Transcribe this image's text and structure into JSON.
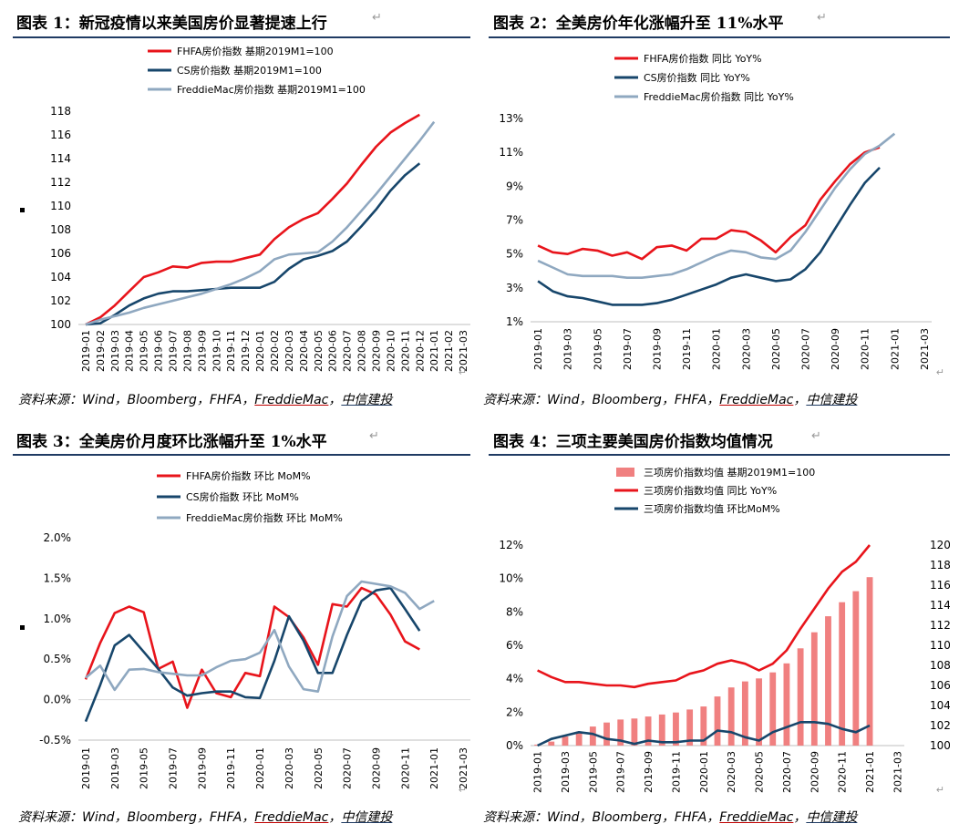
{
  "panels": [
    {
      "title": "图表 1：新冠疫情以来美国房价显著提速上行",
      "source": {
        "prefix": "资料来源：Wind，Bloomberg，FHFA，",
        "underlined": "FreddieMac",
        "sep": "，",
        "brand": "中信建投"
      }
    },
    {
      "title": "图表 2：全美房价年化涨幅升至 11%水平",
      "source": {
        "prefix": "资料来源：Wind，Bloomberg，FHFA，",
        "underlined": "FreddieMac",
        "sep": "，",
        "brand": "中信建投"
      }
    },
    {
      "title": "图表 3：全美房价月度环比涨幅升至 1%水平",
      "source": {
        "prefix": "资料来源：Wind，Bloomberg，FHFA，",
        "underlined": "FreddieMac",
        "sep": "，",
        "brand": "中信建投"
      }
    },
    {
      "title": "图表 4：三项主要美国房价指数均值情况",
      "source": {
        "prefix": "资料来源：Wind，Bloomberg，FHFA，",
        "underlined": "FreddieMac",
        "sep": "，",
        "brand": "中信建投"
      }
    }
  ],
  "colors": {
    "red": "#e8141b",
    "navy": "#17466b",
    "grey": "#8fa8c0",
    "bar": "#f08080",
    "rule": "#1f3b63"
  },
  "chart_data": [
    {
      "type": "line",
      "x": [
        "2019-01",
        "2019-02",
        "2019-03",
        "2019-04",
        "2019-05",
        "2019-06",
        "2019-07",
        "2019-08",
        "2019-09",
        "2019-10",
        "2019-11",
        "2019-12",
        "2020-01",
        "2020-02",
        "2020-03",
        "2020-04",
        "2020-05",
        "2020-06",
        "2020-07",
        "2020-08",
        "2020-09",
        "2020-10",
        "2020-11",
        "2020-12",
        "2021-01",
        "2021-02",
        "2021-03"
      ],
      "tick_labels": [
        "2019-01",
        "2019-02",
        "2019-03",
        "2019-04",
        "2019-05",
        "2019-06",
        "2019-07",
        "2019-08",
        "2019-09",
        "2019-10",
        "2019-11",
        "2019-12",
        "2020-01",
        "2020-02",
        "2020-03",
        "2020-04",
        "2020-05",
        "2020-06",
        "2020-07",
        "2020-08",
        "2020-09",
        "2020-10",
        "2020-11",
        "2020-12",
        "2021-01",
        "2021-02",
        "2021-03"
      ],
      "ylim": [
        100,
        118
      ],
      "yticks": [
        100,
        102,
        104,
        106,
        108,
        110,
        112,
        114,
        116,
        118
      ],
      "series": [
        {
          "name": "FHFA房价指数 基期2019M1=100",
          "color": "#e8141b",
          "values": [
            100,
            100.6,
            101.6,
            102.8,
            104.0,
            104.4,
            104.9,
            104.8,
            105.2,
            105.3,
            105.3,
            105.6,
            105.9,
            107.2,
            108.2,
            108.9,
            109.4,
            110.6,
            111.9,
            113.5,
            115.0,
            116.2,
            117.0,
            117.7,
            null,
            null,
            null
          ]
        },
        {
          "name": "CS房价指数 基期2019M1=100",
          "color": "#17466b",
          "values": [
            100,
            100.1,
            100.8,
            101.6,
            102.2,
            102.6,
            102.8,
            102.8,
            102.9,
            103.0,
            103.1,
            103.1,
            103.1,
            103.6,
            104.7,
            105.5,
            105.8,
            106.2,
            107.0,
            108.3,
            109.7,
            111.3,
            112.6,
            113.6,
            null,
            null,
            null
          ]
        },
        {
          "name": "FreddieMac房价指数 基期2019M1=100",
          "color": "#8fa8c0",
          "values": [
            100,
            100.4,
            100.7,
            101.0,
            101.4,
            101.7,
            102.0,
            102.3,
            102.6,
            103.0,
            103.4,
            103.9,
            104.5,
            105.5,
            105.9,
            106.0,
            106.1,
            107.0,
            108.2,
            109.6,
            111.0,
            112.5,
            114.0,
            115.5,
            117.1,
            null,
            null
          ]
        }
      ]
    },
    {
      "type": "line",
      "x": [
        "2019-01",
        "2019-02",
        "2019-03",
        "2019-04",
        "2019-05",
        "2019-06",
        "2019-07",
        "2019-08",
        "2019-09",
        "2019-10",
        "2019-11",
        "2019-12",
        "2020-01",
        "2020-02",
        "2020-03",
        "2020-04",
        "2020-05",
        "2020-06",
        "2020-07",
        "2020-08",
        "2020-09",
        "2020-10",
        "2020-11",
        "2020-12",
        "2021-01",
        "2021-02",
        "2021-03"
      ],
      "tick_labels": [
        "2019-01",
        "2019-03",
        "2019-05",
        "2019-07",
        "2019-09",
        "2019-11",
        "2020-01",
        "2020-03",
        "2020-05",
        "2020-07",
        "2020-09",
        "2020-11",
        "2021-01",
        "2021-03"
      ],
      "ylim": [
        1,
        13
      ],
      "yticks": [
        1,
        3,
        5,
        7,
        9,
        11,
        13
      ],
      "yunit": "%",
      "series": [
        {
          "name": "FHFA房价指数 同比 YoY%",
          "color": "#e8141b",
          "values": [
            5.5,
            5.1,
            5.0,
            5.3,
            5.2,
            4.9,
            5.1,
            4.7,
            5.4,
            5.5,
            5.2,
            5.9,
            5.9,
            6.4,
            6.3,
            5.8,
            5.1,
            6.0,
            6.7,
            8.2,
            9.3,
            10.3,
            11.0,
            11.3,
            null,
            null,
            null
          ]
        },
        {
          "name": "CS房价指数 同比 YoY%",
          "color": "#17466b",
          "values": [
            3.4,
            2.8,
            2.5,
            2.4,
            2.2,
            2.0,
            2.0,
            2.0,
            2.1,
            2.3,
            2.6,
            2.9,
            3.2,
            3.6,
            3.8,
            3.6,
            3.4,
            3.5,
            4.1,
            5.1,
            6.5,
            7.9,
            9.2,
            10.1,
            null,
            null,
            null
          ]
        },
        {
          "name": "FreddieMac房价指数 同比 YoY%",
          "color": "#8fa8c0",
          "values": [
            4.6,
            4.2,
            3.8,
            3.7,
            3.7,
            3.7,
            3.6,
            3.6,
            3.7,
            3.8,
            4.1,
            4.5,
            4.9,
            5.2,
            5.1,
            4.8,
            4.7,
            5.2,
            6.3,
            7.6,
            8.9,
            10.0,
            10.9,
            11.4,
            12.1,
            null,
            null
          ]
        }
      ]
    },
    {
      "type": "line",
      "x": [
        "2019-01",
        "2019-02",
        "2019-03",
        "2019-04",
        "2019-05",
        "2019-06",
        "2019-07",
        "2019-08",
        "2019-09",
        "2019-10",
        "2019-11",
        "2019-12",
        "2020-01",
        "2020-02",
        "2020-03",
        "2020-04",
        "2020-05",
        "2020-06",
        "2020-07",
        "2020-08",
        "2020-09",
        "2020-10",
        "2020-11",
        "2020-12",
        "2021-01",
        "2021-02",
        "2021-03"
      ],
      "tick_labels": [
        "2019-01",
        "2019-03",
        "2019-05",
        "2019-07",
        "2019-09",
        "2019-11",
        "2020-01",
        "2020-03",
        "2020-05",
        "2020-07",
        "2020-09",
        "2020-11",
        "2021-01",
        "2021-03"
      ],
      "ylim": [
        -0.5,
        2.0
      ],
      "yticks": [
        -0.5,
        0.0,
        0.5,
        1.0,
        1.5,
        2.0
      ],
      "yunit": "%",
      "series": [
        {
          "name": "FHFA房价指数 环比 MoM%",
          "color": "#e8141b",
          "values": [
            0.25,
            0.7,
            1.07,
            1.15,
            1.08,
            0.38,
            0.47,
            -0.1,
            0.37,
            0.08,
            0.03,
            0.33,
            0.29,
            1.15,
            1.02,
            0.77,
            0.43,
            1.18,
            1.15,
            1.38,
            1.3,
            1.05,
            0.72,
            0.62,
            null,
            null,
            null
          ]
        },
        {
          "name": "CS房价指数 环比 MoM%",
          "color": "#17466b",
          "values": [
            -0.27,
            0.18,
            0.67,
            0.8,
            0.59,
            0.38,
            0.15,
            0.05,
            0.08,
            0.1,
            0.1,
            0.03,
            0.02,
            0.48,
            1.03,
            0.73,
            0.33,
            0.33,
            0.8,
            1.22,
            1.35,
            1.38,
            1.12,
            0.85,
            null,
            null,
            null
          ]
        },
        {
          "name": "FreddieMac房价指数 环比 MoM%",
          "color": "#8fa8c0",
          "values": [
            0.27,
            0.42,
            0.12,
            0.37,
            0.38,
            0.34,
            0.32,
            0.3,
            0.3,
            0.4,
            0.48,
            0.5,
            0.58,
            0.86,
            0.41,
            0.13,
            0.1,
            0.78,
            1.28,
            1.46,
            1.43,
            1.4,
            1.32,
            1.12,
            1.22,
            null,
            null
          ]
        }
      ]
    },
    {
      "type": "bar",
      "x": [
        "2019-01",
        "2019-02",
        "2019-03",
        "2019-04",
        "2019-05",
        "2019-06",
        "2019-07",
        "2019-08",
        "2019-09",
        "2019-10",
        "2019-11",
        "2019-12",
        "2020-01",
        "2020-02",
        "2020-03",
        "2020-04",
        "2020-05",
        "2020-06",
        "2020-07",
        "2020-08",
        "2020-09",
        "2020-10",
        "2020-11",
        "2020-12",
        "2021-01",
        "2021-02",
        "2021-03"
      ],
      "tick_labels": [
        "2019-01",
        "2019-03",
        "2019-05",
        "2019-07",
        "2019-09",
        "2019-11",
        "2020-01",
        "2020-03",
        "2020-05",
        "2020-07",
        "2020-09",
        "2020-11",
        "2021-01",
        "2021-03"
      ],
      "ylim_left": [
        0,
        12
      ],
      "yticks_left": [
        0,
        2,
        4,
        6,
        8,
        10,
        12
      ],
      "yunit_left": "%",
      "ylim_right": [
        100,
        120
      ],
      "yticks_right": [
        100,
        102,
        104,
        106,
        108,
        110,
        112,
        114,
        116,
        118,
        120
      ],
      "bars": {
        "name": "三项房价指数均值 基期2019M1=100",
        "color": "#f08080",
        "axis": "right",
        "values": [
          100.1,
          100.4,
          100.9,
          101.4,
          101.9,
          102.3,
          102.6,
          102.7,
          102.9,
          103.1,
          103.3,
          103.6,
          103.9,
          104.9,
          105.8,
          106.4,
          106.7,
          107.3,
          108.2,
          109.7,
          111.3,
          112.9,
          114.3,
          115.4,
          116.8,
          null,
          null
        ]
      },
      "series": [
        {
          "name": "三项房价指数均值 同比 YoY%",
          "color": "#e8141b",
          "axis": "left",
          "values": [
            4.5,
            4.1,
            3.8,
            3.8,
            3.7,
            3.6,
            3.6,
            3.5,
            3.7,
            3.8,
            3.9,
            4.3,
            4.5,
            4.9,
            5.1,
            4.9,
            4.5,
            4.9,
            5.7,
            7.0,
            8.2,
            9.4,
            10.4,
            11.0,
            12.0,
            null,
            null
          ]
        },
        {
          "name": "三项房价指数均值 环比MoM%",
          "color": "#17466b",
          "axis": "left",
          "values": [
            0.0,
            0.4,
            0.6,
            0.8,
            0.7,
            0.4,
            0.3,
            0.1,
            0.3,
            0.2,
            0.2,
            0.3,
            0.3,
            0.9,
            0.8,
            0.5,
            0.3,
            0.8,
            1.1,
            1.4,
            1.4,
            1.3,
            1.0,
            0.8,
            1.2,
            null,
            null
          ]
        }
      ]
    }
  ]
}
